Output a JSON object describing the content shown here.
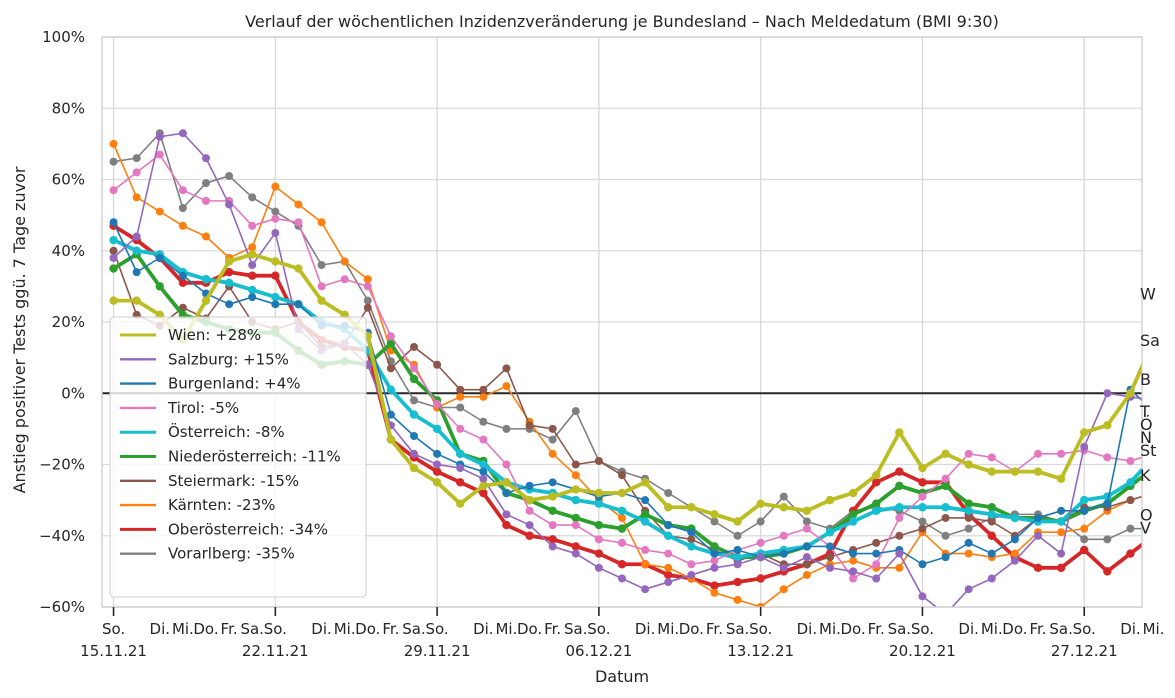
{
  "chart_data": {
    "type": "line",
    "title": "Verlauf der wöchentlichen Inzidenzveränderung je Bundesland – Nach Meldedatum (BMI 9:30)",
    "xlabel": "Datum",
    "ylabel": "Anstieg positiver Tests ggü. 7 Tage zuvor",
    "ylim": [
      -60,
      100
    ],
    "xlim": [
      -0.5,
      44.5
    ],
    "yticks": [
      -60,
      -40,
      -20,
      0,
      20,
      40,
      60,
      80,
      100
    ],
    "ytick_labels": [
      "−60%",
      "−40%",
      "−20%",
      "0%",
      "20%",
      "40%",
      "60%",
      "80%",
      "100%"
    ],
    "grid": true,
    "legend_position": "lower-left",
    "x_ticks": [
      {
        "x": 0,
        "label": "So.",
        "sub": "15.11.21"
      },
      {
        "x": 2,
        "label": "Di.",
        "sub": ""
      },
      {
        "x": 3,
        "label": "Mi.",
        "sub": ""
      },
      {
        "x": 4,
        "label": "Do.",
        "sub": ""
      },
      {
        "x": 5,
        "label": "Fr.",
        "sub": ""
      },
      {
        "x": 6,
        "label": "Sa.",
        "sub": ""
      },
      {
        "x": 7,
        "label": "So.",
        "sub": "22.11.21"
      },
      {
        "x": 9,
        "label": "Di.",
        "sub": ""
      },
      {
        "x": 10,
        "label": "Mi.",
        "sub": ""
      },
      {
        "x": 11,
        "label": "Do.",
        "sub": ""
      },
      {
        "x": 12,
        "label": "Fr.",
        "sub": ""
      },
      {
        "x": 13,
        "label": "Sa.",
        "sub": ""
      },
      {
        "x": 14,
        "label": "So.",
        "sub": "29.11.21"
      },
      {
        "x": 16,
        "label": "Di.",
        "sub": ""
      },
      {
        "x": 17,
        "label": "Mi.",
        "sub": ""
      },
      {
        "x": 18,
        "label": "Do.",
        "sub": ""
      },
      {
        "x": 19,
        "label": "Fr.",
        "sub": ""
      },
      {
        "x": 20,
        "label": "Sa.",
        "sub": ""
      },
      {
        "x": 21,
        "label": "So.",
        "sub": "06.12.21"
      },
      {
        "x": 23,
        "label": "Di.",
        "sub": ""
      },
      {
        "x": 24,
        "label": "Mi.",
        "sub": ""
      },
      {
        "x": 25,
        "label": "Do.",
        "sub": ""
      },
      {
        "x": 26,
        "label": "Fr.",
        "sub": ""
      },
      {
        "x": 27,
        "label": "Sa.",
        "sub": ""
      },
      {
        "x": 28,
        "label": "So.",
        "sub": "13.12.21"
      },
      {
        "x": 30,
        "label": "Di.",
        "sub": ""
      },
      {
        "x": 31,
        "label": "Mi.",
        "sub": ""
      },
      {
        "x": 32,
        "label": "Do.",
        "sub": ""
      },
      {
        "x": 33,
        "label": "Fr.",
        "sub": ""
      },
      {
        "x": 34,
        "label": "Sa.",
        "sub": ""
      },
      {
        "x": 35,
        "label": "So.",
        "sub": "20.12.21"
      },
      {
        "x": 37,
        "label": "Di.",
        "sub": ""
      },
      {
        "x": 38,
        "label": "Mi.",
        "sub": ""
      },
      {
        "x": 39,
        "label": "Do.",
        "sub": ""
      },
      {
        "x": 40,
        "label": "Fr.",
        "sub": ""
      },
      {
        "x": 41,
        "label": "Sa.",
        "sub": ""
      },
      {
        "x": 42,
        "label": "So.",
        "sub": "27.12.21"
      },
      {
        "x": 44,
        "label": "Di.",
        "sub": ""
      },
      {
        "x": 45,
        "label": "Mi.",
        "sub": ""
      }
    ],
    "series": [
      {
        "name": "Wien: +28%",
        "end_label": "W",
        "color": "#bcbd22",
        "bold": true,
        "values": [
          26,
          26,
          22,
          15,
          26,
          37,
          39,
          37,
          35,
          26,
          22,
          16,
          -13,
          -21,
          -25,
          -31,
          -26,
          -25,
          -30,
          -29,
          -27,
          -28,
          -28,
          -25,
          -32,
          -32,
          -34,
          -36,
          -31,
          -32,
          -33,
          -30,
          -28,
          -23,
          -11,
          -21,
          -17,
          -20,
          -22,
          -22,
          -22,
          -24,
          -11,
          -9,
          0,
          15,
          28
        ]
      },
      {
        "name": "Salzburg: +15%",
        "end_label": "Sa",
        "color": "#9467bd",
        "bold": false,
        "values": [
          38,
          44,
          72,
          73,
          66,
          53,
          36,
          45,
          18,
          12,
          14,
          8,
          -9,
          -17,
          -20,
          -21,
          -24,
          -34,
          -37,
          -43,
          -45,
          -49,
          -52,
          -55,
          -53,
          -51,
          -49,
          -48,
          -46,
          -49,
          -46,
          -49,
          -50,
          -52,
          -45,
          -57,
          -62,
          -55,
          -52,
          -47,
          -40,
          -45,
          -15,
          0,
          -1,
          -2,
          15
        ]
      },
      {
        "name": "Burgenland: +4%",
        "end_label": "B",
        "color": "#1f77b4",
        "bold": false,
        "values": [
          48,
          34,
          38,
          33,
          28,
          25,
          27,
          25,
          25,
          19,
          19,
          17,
          -6,
          -12,
          -17,
          -20,
          -22,
          -28,
          -26,
          -25,
          -27,
          -29,
          -28,
          -30,
          -37,
          -39,
          -45,
          -44,
          -46,
          -45,
          -43,
          -43,
          -45,
          -45,
          -44,
          -48,
          -46,
          -42,
          -45,
          -41,
          -35,
          -33,
          -33,
          -31,
          1,
          -5,
          4
        ]
      },
      {
        "name": "Tirol: -5%",
        "end_label": "T",
        "color": "#e377c2",
        "bold": false,
        "values": [
          57,
          62,
          67,
          57,
          54,
          54,
          47,
          49,
          48,
          30,
          32,
          30,
          16,
          7,
          -3,
          -10,
          -13,
          -20,
          -33,
          -37,
          -37,
          -41,
          -42,
          -44,
          -45,
          -48,
          -47,
          -44,
          -42,
          -40,
          -38,
          -43,
          -52,
          -48,
          -35,
          -29,
          -24,
          -17,
          -18,
          -22,
          -17,
          -17,
          -16,
          -18,
          -19,
          -17,
          -5
        ]
      },
      {
        "name": "Österreich: -8%",
        "end_label": "Ö",
        "color": "#17becf",
        "bold": true,
        "values": [
          43,
          40,
          39,
          34,
          32,
          31,
          29,
          27,
          25,
          20,
          18,
          12,
          1,
          -6,
          -10,
          -17,
          -20,
          -25,
          -27,
          -28,
          -30,
          -31,
          -33,
          -36,
          -40,
          -43,
          -45,
          -46,
          -45,
          -44,
          -43,
          -39,
          -36,
          -33,
          -32,
          -32,
          -32,
          -33,
          -34,
          -35,
          -36,
          -36,
          -30,
          -29,
          -25,
          -18,
          -8
        ]
      },
      {
        "name": "Niederösterreich: -11%",
        "end_label": "N",
        "color": "#2ca02c",
        "bold": true,
        "values": [
          35,
          39,
          30,
          22,
          20,
          18,
          17,
          17,
          12,
          8,
          9,
          8,
          14,
          4,
          -2,
          -17,
          -19,
          -28,
          -30,
          -33,
          -35,
          -37,
          -38,
          -34,
          -37,
          -38,
          -43,
          -46,
          -46,
          -45,
          -43,
          -39,
          -34,
          -31,
          -26,
          -28,
          -26,
          -31,
          -32,
          -35,
          -35,
          -36,
          -33,
          -31,
          -26,
          -21,
          -11
        ]
      },
      {
        "name": "Steiermark: -15%",
        "end_label": "St",
        "color": "#8c564b",
        "bold": false,
        "values": [
          40,
          22,
          19,
          24,
          21,
          30,
          20,
          18,
          20,
          13,
          14,
          24,
          7,
          13,
          8,
          1,
          1,
          7,
          -9,
          -10,
          -20,
          -19,
          -23,
          -33,
          -40,
          -41,
          -44,
          -47,
          -45,
          -48,
          -48,
          -46,
          -44,
          -42,
          -40,
          -38,
          -35,
          -35,
          -36,
          -40,
          -35,
          -36,
          -32,
          -32,
          -30,
          -28,
          -15
        ]
      },
      {
        "name": "Kärnten: -23%",
        "end_label": "K",
        "color": "#ff7f0e",
        "bold": false,
        "values": [
          70,
          55,
          51,
          47,
          44,
          38,
          41,
          58,
          53,
          48,
          37,
          32,
          12,
          8,
          -4,
          -1,
          -1,
          2,
          -8,
          -17,
          -23,
          -30,
          -35,
          -48,
          -49,
          -52,
          -56,
          -58,
          -60,
          -55,
          -51,
          -48,
          -47,
          -49,
          -49,
          -39,
          -45,
          -45,
          -46,
          -45,
          -39,
          -39,
          -38,
          -33,
          -30,
          -28,
          -23
        ]
      },
      {
        "name": "Oberösterreich: -34%",
        "end_label": "O",
        "color": "#d62728",
        "bold": true,
        "values": [
          47,
          43,
          38,
          31,
          31,
          34,
          33,
          33,
          20,
          15,
          13,
          12,
          -13,
          -18,
          -22,
          -25,
          -28,
          -37,
          -40,
          -41,
          -43,
          -45,
          -48,
          -48,
          -51,
          -52,
          -54,
          -53,
          -52,
          -50,
          -48,
          -45,
          -33,
          -25,
          -22,
          -25,
          -25,
          -34,
          -40,
          -46,
          -49,
          -49,
          -44,
          -50,
          -45,
          -40,
          -34
        ]
      },
      {
        "name": "Vorarlberg: -35%",
        "end_label": "V",
        "color": "#7f7f7f",
        "bold": false,
        "values": [
          65,
          66,
          73,
          52,
          59,
          61,
          55,
          51,
          47,
          36,
          37,
          26,
          9,
          -2,
          -4,
          -4,
          -8,
          -10,
          -10,
          -13,
          -5,
          -19,
          -22,
          -24,
          -28,
          -32,
          -36,
          -40,
          -36,
          -29,
          -36,
          -38,
          -33,
          -32,
          -33,
          -36,
          -40,
          -38,
          -35,
          -34,
          -34,
          -36,
          -41,
          -41,
          -38,
          -38,
          -35
        ]
      }
    ]
  }
}
